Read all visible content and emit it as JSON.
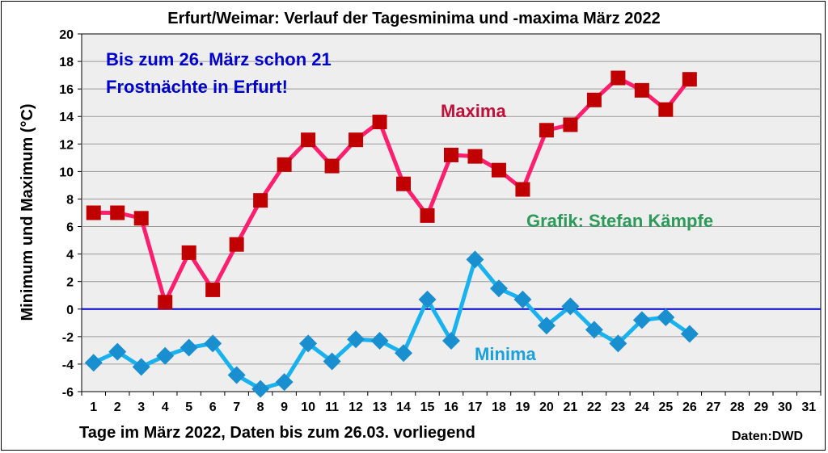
{
  "chart_data": {
    "type": "line",
    "title": "Erfurt/Weimar: Verlauf der Tagesminima und -maxima März 2022",
    "xlabel": "Tage im März 2022, Daten bis zum 26.03. vorliegend",
    "ylabel": "Minimum und Maximum (°C)",
    "source": "Daten:DWD",
    "xlim": [
      1,
      31
    ],
    "ylim": [
      -6,
      20
    ],
    "x_ticks": [
      "1",
      "2",
      "3",
      "4",
      "5",
      "6",
      "7",
      "8",
      "9",
      "10",
      "11",
      "12",
      "13",
      "14",
      "15",
      "16",
      "17",
      "18",
      "19",
      "20",
      "21",
      "22",
      "23",
      "24",
      "25",
      "26",
      "27",
      "28",
      "29",
      "30",
      "31"
    ],
    "y_ticks": [
      "-6",
      "-4",
      "-2",
      "0",
      "2",
      "4",
      "6",
      "8",
      "10",
      "12",
      "14",
      "16",
      "18",
      "20"
    ],
    "grid": true,
    "reference_line": {
      "y": 0,
      "color": "#0000cc"
    },
    "annotations": {
      "frost_line1": "Bis zum 26. März schon 21",
      "frost_line2": "Frostnächte in Erfurt!",
      "max_label": "Maxima",
      "min_label": "Minima",
      "credit": "Grafik: Stefan Kämpfe"
    },
    "series": [
      {
        "name": "Maxima",
        "line_color": "#ff1f6e",
        "marker_color": "#c00000",
        "marker": "square",
        "x": [
          1,
          2,
          3,
          4,
          5,
          6,
          7,
          8,
          9,
          10,
          11,
          12,
          13,
          14,
          15,
          16,
          17,
          18,
          19,
          20,
          21,
          22,
          23,
          24,
          25,
          26
        ],
        "values": [
          7.0,
          7.0,
          6.6,
          0.5,
          4.1,
          1.4,
          4.7,
          7.9,
          10.5,
          12.3,
          10.4,
          12.3,
          13.6,
          9.1,
          6.8,
          11.2,
          11.1,
          10.1,
          8.7,
          13.0,
          13.4,
          15.2,
          16.8,
          15.9,
          14.5,
          16.7
        ]
      },
      {
        "name": "Minima",
        "line_color": "#1ab2ee",
        "marker_color": "#1a8fd0",
        "marker": "diamond",
        "x": [
          1,
          2,
          3,
          4,
          5,
          6,
          7,
          8,
          9,
          10,
          11,
          12,
          13,
          14,
          15,
          16,
          17,
          18,
          19,
          20,
          21,
          22,
          23,
          24,
          25,
          26
        ],
        "values": [
          -3.9,
          -3.1,
          -4.2,
          -3.4,
          -2.8,
          -2.5,
          -4.8,
          -5.8,
          -5.3,
          -2.5,
          -3.8,
          -2.2,
          -2.3,
          -3.2,
          0.7,
          -2.3,
          3.6,
          1.5,
          0.7,
          -1.2,
          0.2,
          -1.5,
          -2.5,
          -0.8,
          -0.6,
          -1.8
        ]
      }
    ]
  }
}
